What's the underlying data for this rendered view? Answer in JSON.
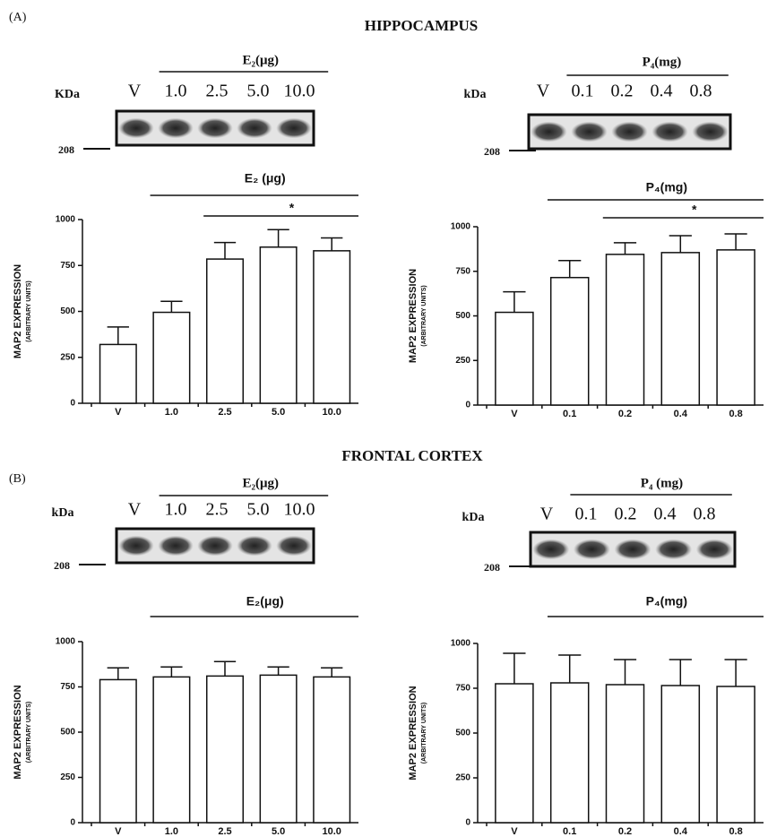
{
  "sections": [
    {
      "letter": "(A)",
      "title": "HIPPOCAMPUS"
    },
    {
      "letter": "(B)",
      "title": "FRONTAL CORTEX"
    }
  ],
  "chart_data": [
    {
      "type": "bar",
      "group_label": "E₂ (μg)",
      "significance": "*",
      "ylabel": "MAP2 EXPRESSION",
      "ylabel_sub": "(ARBITRARY UNITS)",
      "categories": [
        "V",
        "1.0",
        "2.5",
        "5.0",
        "10.0"
      ],
      "values": [
        320,
        495,
        785,
        850,
        830
      ],
      "errors": [
        95,
        60,
        90,
        95,
        70
      ],
      "color": "#ffffff",
      "ylim": [
        0,
        1000
      ],
      "yticks": [
        0,
        250,
        500,
        750,
        1000
      ],
      "blot": {
        "header": "E₂(μg)",
        "unit_label": "KDa",
        "marker": "208"
      }
    },
    {
      "type": "bar",
      "group_label": "P₄(mg)",
      "significance": "*",
      "ylabel": "MAP2 EXPRESSION",
      "ylabel_sub": "(ARBITRARY UNITS)",
      "categories": [
        "V",
        "0.1",
        "0.2",
        "0.4",
        "0.8"
      ],
      "values": [
        520,
        715,
        845,
        855,
        870
      ],
      "errors": [
        115,
        95,
        65,
        95,
        90
      ],
      "color": "#ffffff",
      "ylim": [
        0,
        1000
      ],
      "yticks": [
        0,
        250,
        500,
        750,
        1000
      ],
      "blot": {
        "header": "P₄(mg)",
        "unit_label": "kDa",
        "marker": "208"
      }
    },
    {
      "type": "bar",
      "group_label": "E₂(μg)",
      "ylabel": "MAP2 EXPRESSION",
      "ylabel_sub": "(ARBITRARY UNITS)",
      "categories": [
        "V",
        "1.0",
        "2.5",
        "5.0",
        "10.0"
      ],
      "values": [
        790,
        805,
        810,
        815,
        805
      ],
      "errors": [
        65,
        55,
        80,
        45,
        50
      ],
      "color": "#ffffff",
      "ylim": [
        0,
        1000
      ],
      "yticks": [
        0,
        250,
        500,
        750,
        1000
      ],
      "blot": {
        "header": "E₂(μg)",
        "unit_label": "kDa",
        "marker": "208"
      }
    },
    {
      "type": "bar",
      "group_label": "P₄(mg)",
      "ylabel": "MAP2 EXPRESSION",
      "ylabel_sub": "(ARBITRARY UNITS)",
      "categories": [
        "V",
        "0.1",
        "0.2",
        "0.4",
        "0.8"
      ],
      "values": [
        775,
        780,
        770,
        765,
        760
      ],
      "errors": [
        170,
        155,
        140,
        145,
        150
      ],
      "color": "#ffffff",
      "ylim": [
        0,
        1000
      ],
      "yticks": [
        0,
        250,
        500,
        750,
        1000
      ],
      "blot": {
        "header": "P₄ (mg)",
        "unit_label": "kDa",
        "marker": "208"
      }
    }
  ]
}
